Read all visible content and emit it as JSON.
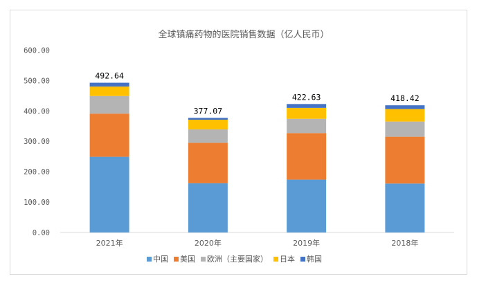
{
  "chart_data": {
    "type": "stacked-bar",
    "title": "全球镇痛药物的医院销售数据（亿人民币）",
    "categories": [
      "2021年",
      "2020年",
      "2019年",
      "2018年"
    ],
    "totals": [
      "492.64",
      "377.07",
      "422.63",
      "418.42"
    ],
    "ylim": [
      0,
      600
    ],
    "yticks": [
      "0.00",
      "100.00",
      "200.00",
      "300.00",
      "400.00",
      "500.00",
      "600.00"
    ],
    "grid": false,
    "legend_position": "bottom",
    "series": [
      {
        "name": "中国",
        "color": "#5B9BD5",
        "values": [
          249,
          162,
          174,
          161
        ]
      },
      {
        "name": "美国",
        "color": "#ED7D31",
        "values": [
          142,
          133,
          153,
          154
        ]
      },
      {
        "name": "欧洲（主要国家）",
        "color": "#B4B4B4",
        "values": [
          58,
          44,
          47,
          50
        ]
      },
      {
        "name": "日本",
        "color": "#FFC000",
        "values": [
          31,
          32,
          36,
          41
        ]
      },
      {
        "name": "韩国",
        "color": "#4472C4",
        "values": [
          12.64,
          6.07,
          12.63,
          12.42
        ]
      }
    ]
  }
}
